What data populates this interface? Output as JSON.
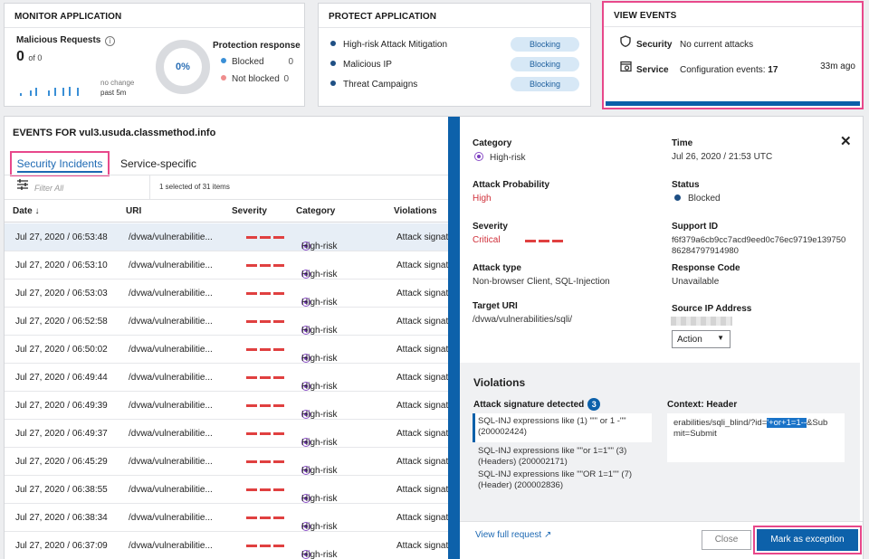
{
  "monitor": {
    "title": "MONITOR APPLICATION",
    "malicious_label": "Malicious Requests",
    "info_glyph": "i",
    "malicious_count": "0",
    "malicious_of": "of 0",
    "sparkline_bar_heights": [
      3,
      6,
      9,
      6,
      9,
      9,
      10,
      9
    ],
    "no_change": "no change",
    "past": "past 5m",
    "donut_value": "0%",
    "protection_title": "Protection response",
    "blocked_label": "Blocked",
    "blocked_value": "0",
    "not_blocked_label": "Not blocked",
    "not_blocked_value": "0"
  },
  "protect": {
    "title": "PROTECT APPLICATION",
    "items": [
      {
        "label": "High-risk Attack Mitigation",
        "status": "Blocking"
      },
      {
        "label": "Malicious IP",
        "status": "Blocking"
      },
      {
        "label": "Threat Campaigns",
        "status": "Blocking"
      }
    ]
  },
  "view_events": {
    "title": "VIEW EVENTS",
    "security_label": "Security",
    "security_value": "No current attacks",
    "service_label": "Service",
    "service_value_prefix": "Configuration events:",
    "service_count": "17",
    "service_ago": "33m ago"
  },
  "events": {
    "title": "EVENTS FOR vul3.usuda.classmethod.info",
    "tab_security": "Security Incidents",
    "tab_service": "Service-specific",
    "filter_placeholder": "Filter All",
    "selected_text": "1 selected of 31 items",
    "columns": {
      "date": "Date ↓",
      "uri": "URI",
      "severity": "Severity",
      "category": "Category",
      "violations": "Violations"
    },
    "rows": [
      {
        "date": "Jul 27, 2020 / 06:53:48",
        "uri": "/dvwa/vulnerabilitie...",
        "category": "High-risk",
        "violations": "Attack signat"
      },
      {
        "date": "Jul 27, 2020 / 06:53:10",
        "uri": "/dvwa/vulnerabilitie...",
        "category": "High-risk",
        "violations": "Attack signat"
      },
      {
        "date": "Jul 27, 2020 / 06:53:03",
        "uri": "/dvwa/vulnerabilitie...",
        "category": "High-risk",
        "violations": "Attack signat"
      },
      {
        "date": "Jul 27, 2020 / 06:52:58",
        "uri": "/dvwa/vulnerabilitie...",
        "category": "High-risk",
        "violations": "Attack signat"
      },
      {
        "date": "Jul 27, 2020 / 06:50:02",
        "uri": "/dvwa/vulnerabilitie...",
        "category": "High-risk",
        "violations": "Attack signat"
      },
      {
        "date": "Jul 27, 2020 / 06:49:44",
        "uri": "/dvwa/vulnerabilitie...",
        "category": "High-risk",
        "violations": "Attack signat"
      },
      {
        "date": "Jul 27, 2020 / 06:49:39",
        "uri": "/dvwa/vulnerabilitie...",
        "category": "High-risk",
        "violations": "Attack signat"
      },
      {
        "date": "Jul 27, 2020 / 06:49:37",
        "uri": "/dvwa/vulnerabilitie...",
        "category": "High-risk",
        "violations": "Attack signat"
      },
      {
        "date": "Jul 27, 2020 / 06:45:29",
        "uri": "/dvwa/vulnerabilitie...",
        "category": "High-risk",
        "violations": "Attack signat"
      },
      {
        "date": "Jul 27, 2020 / 06:38:55",
        "uri": "/dvwa/vulnerabilitie...",
        "category": "High-risk",
        "violations": "Attack signat"
      },
      {
        "date": "Jul 27, 2020 / 06:38:34",
        "uri": "/dvwa/vulnerabilitie...",
        "category": "High-risk",
        "violations": "Attack signat"
      },
      {
        "date": "Jul 27, 2020 / 06:37:09",
        "uri": "/dvwa/vulnerabilitie...",
        "category": "High-risk",
        "violations": "Attack signat"
      }
    ]
  },
  "detail": {
    "close": "✕",
    "category_label": "Category",
    "category_value": "High-risk",
    "time_label": "Time",
    "time_value": "Jul 26, 2020 / 21:53 UTC",
    "probability_label": "Attack Probability",
    "probability_value": "High",
    "status_label": "Status",
    "status_value": "Blocked",
    "severity_label": "Severity",
    "severity_value": "Critical",
    "support_label": "Support ID",
    "support_line1": "f6f379a6cb9cc7acd9eed0c76ec9719e139750",
    "support_line2": "86284797914980",
    "attack_type_label": "Attack type",
    "attack_type_value": "Non-browser Client, SQL-Injection",
    "response_label": "Response Code",
    "response_value": "Unavailable",
    "target_label": "Target URI",
    "target_value": "/dvwa/vulnerabilities/sqli/",
    "source_ip_label": "Source IP Address",
    "action_label": "Action",
    "violations_title": "Violations",
    "sig_detected_label": "Attack signature detected",
    "sig_count": "3",
    "signatures": [
      "SQL-INJ expressions like (1) \"\"' or 1 -\"\" (200002424)",
      "SQL-INJ expressions like \"\"or 1=1\"\" (3) (Headers) (200002171)",
      "SQL-INJ expressions like \"\"OR 1=1\"\" (7) (Header) (200002836)"
    ],
    "context_label": "Context: Header",
    "context_pre": "erabilities/sqli_blind/?id=",
    "context_highlight": "'+or+1=1--",
    "context_post": "&Sub",
    "context_line2": "mit=Submit",
    "full_request": "View full request",
    "external_icon": "↗",
    "close_button": "Close",
    "mark_button": "Mark as exception"
  }
}
